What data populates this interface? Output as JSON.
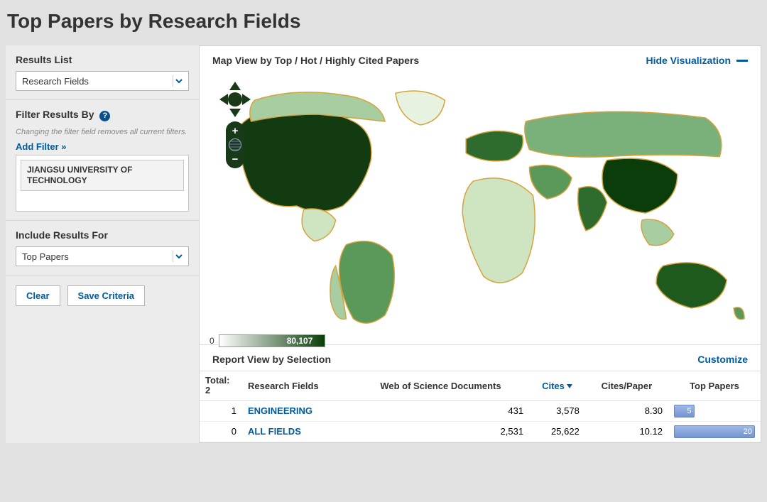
{
  "page_title": "Top Papers by Research Fields",
  "sidebar": {
    "results_list": {
      "heading": "Results List",
      "selected": "Research Fields"
    },
    "filter": {
      "heading": "Filter Results By",
      "hint": "Changing the filter field removes all current filters.",
      "add_link": "Add Filter »",
      "chip": "JIANGSU UNIVERSITY OF TECHNOLOGY"
    },
    "include": {
      "heading": "Include Results For",
      "selected": "Top Papers"
    },
    "buttons": {
      "clear": "Clear",
      "save": "Save Criteria"
    }
  },
  "map": {
    "title": "Map View by Top / Hot / Highly Cited Papers",
    "hide_label": "Hide Visualization",
    "legend_min": "0",
    "legend_max": "80,107",
    "colors": {
      "land_default": "#cfe5c2",
      "ocean": "#ffffff",
      "border": "#d6a23a",
      "dark": "#123b12",
      "mid_dark": "#2e6b2e",
      "mid": "#5a995a",
      "light": "#a7cda0"
    }
  },
  "report": {
    "title": "Report View by Selection",
    "customize": "Customize",
    "total_label": "Total:",
    "total_value": "2",
    "columns": [
      "Research Fields",
      "Web of Science Documents",
      "Cites",
      "Cites/Paper",
      "Top Papers"
    ],
    "sort_column": "Cites",
    "rows": [
      {
        "idx": "1",
        "name": "ENGINEERING",
        "docs": "431",
        "cites": "3,578",
        "cpp": "8.30",
        "bar_pct": 25,
        "bar_label": "5"
      },
      {
        "idx": "0",
        "name": "ALL FIELDS",
        "docs": "2,531",
        "cites": "25,622",
        "cpp": "10.12",
        "bar_pct": 100,
        "bar_label": "20"
      }
    ],
    "bar_color": "#7b99d4"
  }
}
